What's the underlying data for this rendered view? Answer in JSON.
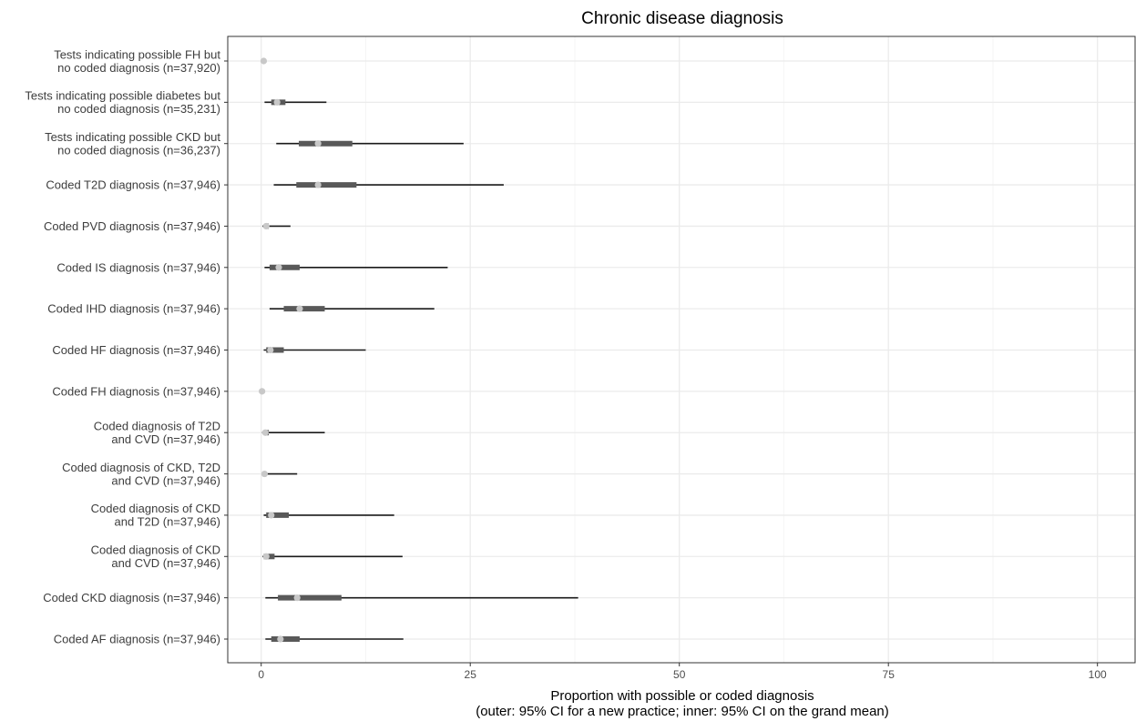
{
  "chart_data": {
    "type": "interval",
    "title": "Chronic disease diagnosis",
    "xlabel": "Proportion with possible or coded diagnosis",
    "xlabel_note": "(outer: 95% CI for a new practice; inner: 95% CI on the grand mean)",
    "xlim": [
      -4,
      104.5
    ],
    "xticks": [
      0,
      25,
      50,
      75,
      100
    ],
    "grid": true,
    "colors": {
      "point": "#c8c8c8",
      "inner": "#595959",
      "outer": "#1a1a1a",
      "grid_major": "#ebebeb",
      "grid_minor": "#f5f5f5",
      "panel_border": "#333333"
    },
    "categories": [
      "Tests indicating possible FH but\nno coded diagnosis (n=37,920)",
      "Tests indicating possible diabetes but\nno coded diagnosis (n=35,231)",
      "Tests indicating possible CKD but\nno coded diagnosis (n=36,237)",
      "Coded T2D diagnosis (n=37,946)",
      "Coded PVD diagnosis (n=37,946)",
      "Coded IS diagnosis (n=37,946)",
      "Coded IHD diagnosis (n=37,946)",
      "Coded HF diagnosis (n=37,946)",
      "Coded FH diagnosis (n=37,946)",
      "Coded diagnosis of T2D\nand CVD (n=37,946)",
      "Coded diagnosis of CKD, T2D\nand CVD (n=37,946)",
      "Coded diagnosis of CKD\nand T2D (n=37,946)",
      "Coded diagnosis of CKD\nand CVD (n=37,946)",
      "Coded CKD diagnosis (n=37,946)",
      "Coded AF diagnosis (n=37,946)"
    ],
    "estimate": [
      0.3,
      1.9,
      6.8,
      6.8,
      0.6,
      2.1,
      4.6,
      1.1,
      0.1,
      0.5,
      0.4,
      1.2,
      0.6,
      4.3,
      2.3
    ],
    "inner_low": [
      0.25,
      1.2,
      4.5,
      4.2,
      0.4,
      1.0,
      2.7,
      0.6,
      0.05,
      0.3,
      0.25,
      0.6,
      0.3,
      2.0,
      1.2
    ],
    "inner_high": [
      0.4,
      2.9,
      10.9,
      11.4,
      0.9,
      4.6,
      7.6,
      2.7,
      0.15,
      0.9,
      0.6,
      3.3,
      1.6,
      9.6,
      4.6
    ],
    "outer_low": [
      0.2,
      0.4,
      1.8,
      1.5,
      0.15,
      0.4,
      1.0,
      0.3,
      0.03,
      0.1,
      0.1,
      0.3,
      0.15,
      0.5,
      0.5
    ],
    "outer_high": [
      0.5,
      7.8,
      24.2,
      29.0,
      3.5,
      22.3,
      20.7,
      12.5,
      0.2,
      7.6,
      4.3,
      15.9,
      16.9,
      37.9,
      17.0
    ]
  }
}
